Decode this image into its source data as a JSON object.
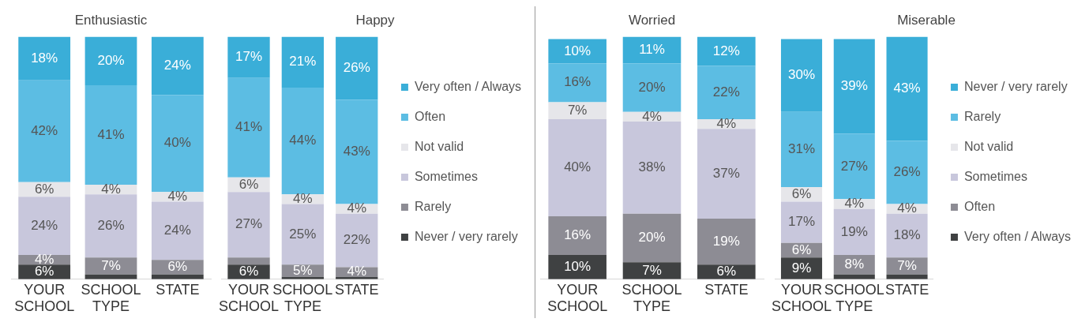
{
  "chart_data": [
    {
      "type": "bar",
      "title": "Enthusiastic",
      "stacked": true,
      "categories": [
        "YOUR SCHOOL",
        "SCHOOL TYPE",
        "STATE"
      ],
      "ylim": [
        0,
        100
      ],
      "tick_labels": "x",
      "grid": false,
      "legend": false,
      "series": [
        {
          "color": "#3f4142",
          "values": [
            6,
            2,
            2
          ],
          "value_labels": [
            "6%",
            null,
            null
          ]
        },
        {
          "color": "#8d8c94",
          "values": [
            4,
            7,
            6
          ],
          "value_labels": [
            "4%",
            "7%",
            "6%"
          ]
        },
        {
          "color": "#c8c7dc",
          "values": [
            24,
            26,
            24
          ],
          "value_labels": [
            "24%",
            "26%",
            "24%"
          ]
        },
        {
          "color": "#e6e6ea",
          "values": [
            6,
            4,
            4
          ],
          "value_labels": [
            "6%",
            "4%",
            "4%"
          ]
        },
        {
          "color": "#5cbde3",
          "values": [
            42,
            41,
            40
          ],
          "value_labels": [
            "42%",
            "41%",
            "40%"
          ]
        },
        {
          "color": "#3aaed8",
          "values": [
            18,
            20,
            24
          ],
          "value_labels": [
            "18%",
            "20%",
            "24%"
          ]
        }
      ]
    },
    {
      "type": "bar",
      "title": "Happy",
      "stacked": true,
      "categories": [
        "YOUR SCHOOL",
        "SCHOOL TYPE",
        "STATE"
      ],
      "ylim": [
        0,
        100
      ],
      "tick_labels": "x",
      "grid": false,
      "legend": "right",
      "series": [
        {
          "name": "Never / very rarely",
          "color": "#3f4142",
          "values": [
            6,
            1,
            1
          ],
          "value_labels": [
            "6%",
            null,
            null
          ]
        },
        {
          "name": "Rarely",
          "color": "#8d8c94",
          "values": [
            3,
            5,
            4
          ],
          "value_labels": [
            null,
            "5%",
            "4%"
          ]
        },
        {
          "name": "Sometimes",
          "color": "#c8c7dc",
          "values": [
            27,
            25,
            22
          ],
          "value_labels": [
            "27%",
            "25%",
            "22%"
          ]
        },
        {
          "name": "Not valid",
          "color": "#e6e6ea",
          "values": [
            6,
            4,
            4
          ],
          "value_labels": [
            "6%",
            "4%",
            "4%"
          ]
        },
        {
          "name": "Often",
          "color": "#5cbde3",
          "values": [
            41,
            44,
            43
          ],
          "value_labels": [
            "41%",
            "44%",
            "43%"
          ]
        },
        {
          "name": "Very often / Always",
          "color": "#3aaed8",
          "values": [
            17,
            21,
            26
          ],
          "value_labels": [
            "17%",
            "21%",
            "26%"
          ]
        }
      ]
    },
    {
      "type": "bar",
      "title": "Worried",
      "stacked": true,
      "categories": [
        "YOUR SCHOOL",
        "SCHOOL TYPE",
        "STATE"
      ],
      "ylim": [
        0,
        100
      ],
      "tick_labels": "x",
      "grid": false,
      "legend": false,
      "series": [
        {
          "color": "#3f4142",
          "values": [
            10,
            7,
            6
          ],
          "value_labels": [
            "10%",
            "7%",
            "6%"
          ]
        },
        {
          "color": "#8d8c94",
          "values": [
            16,
            20,
            19
          ],
          "value_labels": [
            "16%",
            "20%",
            "19%"
          ]
        },
        {
          "color": "#c8c7dc",
          "values": [
            40,
            38,
            37
          ],
          "value_labels": [
            "40%",
            "38%",
            "37%"
          ]
        },
        {
          "color": "#e6e6ea",
          "values": [
            7,
            4,
            4
          ],
          "value_labels": [
            "7%",
            "4%",
            "4%"
          ]
        },
        {
          "color": "#5cbde3",
          "values": [
            16,
            20,
            22
          ],
          "value_labels": [
            "16%",
            "20%",
            "22%"
          ]
        },
        {
          "color": "#3aaed8",
          "values": [
            10,
            11,
            12
          ],
          "value_labels": [
            "10%",
            "11%",
            "12%"
          ]
        }
      ]
    },
    {
      "type": "bar",
      "title": "Miserable",
      "stacked": true,
      "categories": [
        "YOUR SCHOOL",
        "SCHOOL TYPE",
        "STATE"
      ],
      "ylim": [
        0,
        100
      ],
      "tick_labels": "x",
      "grid": false,
      "legend": "right",
      "series": [
        {
          "name": "Very often / Always",
          "color": "#3f4142",
          "values": [
            9,
            2,
            2
          ],
          "value_labels": [
            "9%",
            null,
            null
          ]
        },
        {
          "name": "Often",
          "color": "#8d8c94",
          "values": [
            6,
            8,
            7
          ],
          "value_labels": [
            "6%",
            "8%",
            "7%"
          ]
        },
        {
          "name": "Sometimes",
          "color": "#c8c7dc",
          "values": [
            17,
            19,
            18
          ],
          "value_labels": [
            "17%",
            "19%",
            "18%"
          ]
        },
        {
          "name": "Not valid",
          "color": "#e6e6ea",
          "values": [
            6,
            4,
            4
          ],
          "value_labels": [
            "6%",
            "4%",
            "4%"
          ]
        },
        {
          "name": "Rarely",
          "color": "#5cbde3",
          "values": [
            31,
            27,
            26
          ],
          "value_labels": [
            "31%",
            "27%",
            "26%"
          ]
        },
        {
          "name": "Never / very rarely",
          "color": "#3aaed8",
          "values": [
            30,
            39,
            43
          ],
          "value_labels": [
            "30%",
            "39%",
            "43%"
          ]
        }
      ]
    }
  ]
}
